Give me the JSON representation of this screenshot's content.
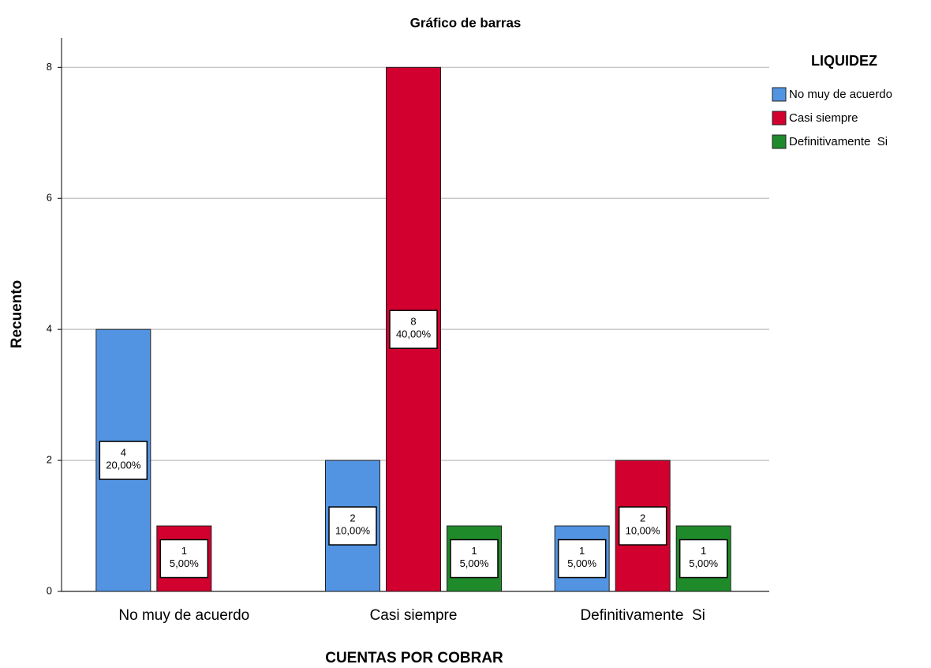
{
  "chart_data": {
    "type": "bar",
    "title": "Gráfico de barras",
    "x_label": "CUENTAS POR COBRAR",
    "y_label": "Recuento",
    "legend_title": "LIQUIDEZ",
    "legend_position": "right",
    "categories": [
      "No muy de acuerdo",
      "Casi siempre",
      "Definitivamente  Si"
    ],
    "series": [
      {
        "name": "No muy de acuerdo",
        "color": "#5294e2",
        "values": [
          4,
          2,
          1
        ],
        "percents": [
          20,
          10,
          5
        ],
        "percent_labels": [
          "20,00%",
          "10,00%",
          "5,00%"
        ]
      },
      {
        "name": "Casi siempre",
        "color": "#d2002e",
        "values": [
          1,
          8,
          2
        ],
        "percents": [
          5,
          40,
          10
        ],
        "percent_labels": [
          "5,00%",
          "40,00%",
          "10,00%"
        ]
      },
      {
        "name": "Definitivamente  Si",
        "color": "#1f8a2a",
        "values": [
          null,
          1,
          1
        ],
        "percents": [
          null,
          5,
          5
        ],
        "percent_labels": [
          null,
          "5,00%",
          "5,00%"
        ]
      }
    ],
    "ylim": [
      0,
      8.45
    ],
    "yticks": [
      0,
      2,
      4,
      6,
      8
    ],
    "grid": true
  }
}
